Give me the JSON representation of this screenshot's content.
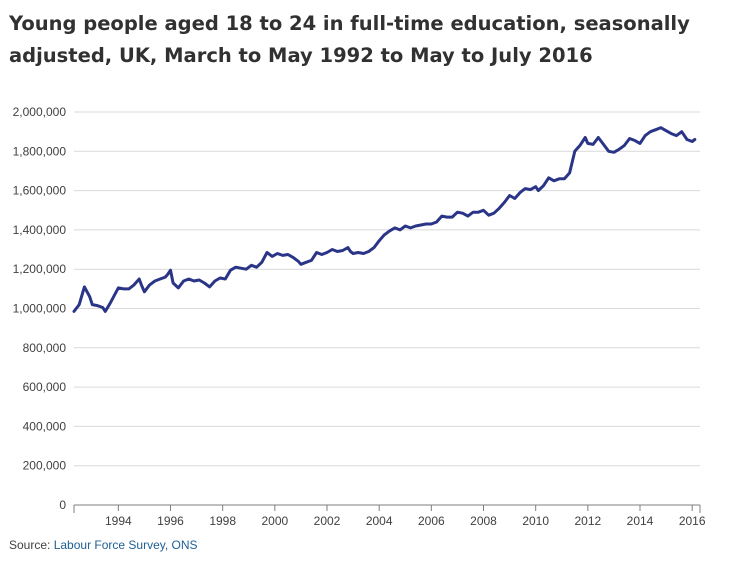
{
  "title": "Young people aged 18 to 24 in full-time education, seasonally adjusted, UK, March to May 1992 to May to July 2016",
  "source": {
    "prefix": "Source: ",
    "link_text": "Labour Force Survey, ONS"
  },
  "colors": {
    "series": "#2a3587",
    "grid": "#d9d9d9",
    "link": "#206095"
  },
  "chart_data": {
    "type": "line",
    "title": "Young people aged 18 to 24 in full-time education, seasonally adjusted, UK, March to May 1992 to May to July 2016",
    "xlabel": "",
    "ylabel": "",
    "xlim": [
      1992.3,
      2016.3
    ],
    "ylim": [
      0,
      2000000
    ],
    "grid": true,
    "legend": "none",
    "x_ticks": [
      1994,
      1996,
      1998,
      2000,
      2002,
      2004,
      2006,
      2008,
      2010,
      2012,
      2014,
      2016
    ],
    "x_tick_labels": [
      "1994",
      "1996",
      "1998",
      "2000",
      "2002",
      "2004",
      "2006",
      "2008",
      "2010",
      "2012",
      "2014",
      "2016"
    ],
    "y_ticks": [
      0,
      200000,
      400000,
      600000,
      800000,
      1000000,
      1200000,
      1400000,
      1600000,
      1800000,
      2000000
    ],
    "y_tick_labels": [
      "0",
      "200,000",
      "400,000",
      "600,000",
      "800,000",
      "1,000,000",
      "1,200,000",
      "1,400,000",
      "1,600,000",
      "1,800,000",
      "2,000,000"
    ],
    "series": [
      {
        "points": [
          [
            1992.3,
            985000
          ],
          [
            1992.5,
            1020000
          ],
          [
            1992.7,
            1110000
          ],
          [
            1992.9,
            1060000
          ],
          [
            1993.0,
            1020000
          ],
          [
            1993.2,
            1015000
          ],
          [
            1993.4,
            1005000
          ],
          [
            1993.5,
            985000
          ],
          [
            1993.7,
            1030000
          ],
          [
            1993.9,
            1080000
          ],
          [
            1994.0,
            1105000
          ],
          [
            1994.2,
            1100000
          ],
          [
            1994.4,
            1100000
          ],
          [
            1994.6,
            1120000
          ],
          [
            1994.8,
            1150000
          ],
          [
            1994.9,
            1115000
          ],
          [
            1995.0,
            1085000
          ],
          [
            1995.2,
            1120000
          ],
          [
            1995.4,
            1140000
          ],
          [
            1995.6,
            1150000
          ],
          [
            1995.8,
            1160000
          ],
          [
            1995.9,
            1175000
          ],
          [
            1996.0,
            1195000
          ],
          [
            1996.1,
            1130000
          ],
          [
            1996.3,
            1105000
          ],
          [
            1996.5,
            1140000
          ],
          [
            1996.7,
            1150000
          ],
          [
            1996.9,
            1140000
          ],
          [
            1997.1,
            1145000
          ],
          [
            1997.3,
            1130000
          ],
          [
            1997.5,
            1110000
          ],
          [
            1997.7,
            1140000
          ],
          [
            1997.9,
            1155000
          ],
          [
            1998.1,
            1150000
          ],
          [
            1998.3,
            1195000
          ],
          [
            1998.5,
            1210000
          ],
          [
            1998.7,
            1205000
          ],
          [
            1998.9,
            1200000
          ],
          [
            1999.1,
            1220000
          ],
          [
            1999.3,
            1210000
          ],
          [
            1999.5,
            1235000
          ],
          [
            1999.7,
            1285000
          ],
          [
            1999.9,
            1265000
          ],
          [
            2000.1,
            1280000
          ],
          [
            2000.3,
            1270000
          ],
          [
            2000.5,
            1275000
          ],
          [
            2000.7,
            1260000
          ],
          [
            2000.9,
            1240000
          ],
          [
            2001.0,
            1225000
          ],
          [
            2001.2,
            1235000
          ],
          [
            2001.4,
            1245000
          ],
          [
            2001.6,
            1285000
          ],
          [
            2001.8,
            1275000
          ],
          [
            2002.0,
            1285000
          ],
          [
            2002.2,
            1300000
          ],
          [
            2002.4,
            1290000
          ],
          [
            2002.6,
            1295000
          ],
          [
            2002.8,
            1310000
          ],
          [
            2002.9,
            1290000
          ],
          [
            2003.0,
            1280000
          ],
          [
            2003.2,
            1285000
          ],
          [
            2003.4,
            1280000
          ],
          [
            2003.6,
            1290000
          ],
          [
            2003.8,
            1310000
          ],
          [
            2004.0,
            1345000
          ],
          [
            2004.2,
            1375000
          ],
          [
            2004.4,
            1395000
          ],
          [
            2004.6,
            1410000
          ],
          [
            2004.8,
            1400000
          ],
          [
            2005.0,
            1420000
          ],
          [
            2005.2,
            1410000
          ],
          [
            2005.4,
            1420000
          ],
          [
            2005.6,
            1425000
          ],
          [
            2005.8,
            1430000
          ],
          [
            2006.0,
            1430000
          ],
          [
            2006.2,
            1440000
          ],
          [
            2006.4,
            1470000
          ],
          [
            2006.6,
            1465000
          ],
          [
            2006.8,
            1465000
          ],
          [
            2007.0,
            1490000
          ],
          [
            2007.2,
            1485000
          ],
          [
            2007.4,
            1470000
          ],
          [
            2007.6,
            1490000
          ],
          [
            2007.8,
            1490000
          ],
          [
            2008.0,
            1500000
          ],
          [
            2008.2,
            1475000
          ],
          [
            2008.4,
            1485000
          ],
          [
            2008.6,
            1510000
          ],
          [
            2008.8,
            1540000
          ],
          [
            2009.0,
            1575000
          ],
          [
            2009.2,
            1560000
          ],
          [
            2009.4,
            1590000
          ],
          [
            2009.6,
            1610000
          ],
          [
            2009.8,
            1605000
          ],
          [
            2010.0,
            1620000
          ],
          [
            2010.1,
            1600000
          ],
          [
            2010.3,
            1625000
          ],
          [
            2010.5,
            1665000
          ],
          [
            2010.7,
            1650000
          ],
          [
            2010.9,
            1660000
          ],
          [
            2011.1,
            1660000
          ],
          [
            2011.3,
            1690000
          ],
          [
            2011.5,
            1800000
          ],
          [
            2011.7,
            1830000
          ],
          [
            2011.9,
            1870000
          ],
          [
            2012.0,
            1840000
          ],
          [
            2012.2,
            1835000
          ],
          [
            2012.4,
            1870000
          ],
          [
            2012.6,
            1835000
          ],
          [
            2012.8,
            1800000
          ],
          [
            2013.0,
            1795000
          ],
          [
            2013.2,
            1810000
          ],
          [
            2013.4,
            1830000
          ],
          [
            2013.6,
            1865000
          ],
          [
            2013.8,
            1855000
          ],
          [
            2014.0,
            1840000
          ],
          [
            2014.2,
            1880000
          ],
          [
            2014.4,
            1900000
          ],
          [
            2014.6,
            1910000
          ],
          [
            2014.8,
            1920000
          ],
          [
            2015.0,
            1905000
          ],
          [
            2015.2,
            1890000
          ],
          [
            2015.4,
            1880000
          ],
          [
            2015.6,
            1900000
          ],
          [
            2015.8,
            1860000
          ],
          [
            2016.0,
            1850000
          ],
          [
            2016.1,
            1860000
          ]
        ]
      }
    ]
  }
}
